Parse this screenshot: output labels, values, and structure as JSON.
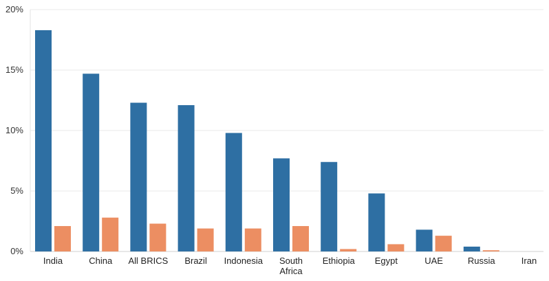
{
  "chart_data": {
    "type": "bar",
    "title": "",
    "xlabel": "",
    "ylabel": "",
    "ylim": [
      0,
      20
    ],
    "y_ticks": [
      {
        "value": 0,
        "label": "0%"
      },
      {
        "value": 5,
        "label": "5%"
      },
      {
        "value": 10,
        "label": "10%"
      },
      {
        "value": 15,
        "label": "15%"
      },
      {
        "value": 20,
        "label": "20%"
      }
    ],
    "categories": [
      "India",
      "China",
      "All BRICS",
      "Brazil",
      "Indonesia",
      "South Africa",
      "Ethiopia",
      "Egypt",
      "UAE",
      "Russia",
      "Iran"
    ],
    "category_lines": [
      [
        "India"
      ],
      [
        "China"
      ],
      [
        "All BRICS"
      ],
      [
        "Brazil"
      ],
      [
        "Indonesia"
      ],
      [
        "South",
        "Africa"
      ],
      [
        "Ethiopia"
      ],
      [
        "Egypt"
      ],
      [
        "UAE"
      ],
      [
        "Russia"
      ],
      [
        "Iran"
      ]
    ],
    "series": [
      {
        "color": "#2e6fa3",
        "values": [
          18.3,
          14.7,
          12.3,
          12.1,
          9.8,
          7.7,
          7.4,
          4.8,
          1.8,
          0.4,
          0.0
        ]
      },
      {
        "color": "#ec8e62",
        "values": [
          2.1,
          2.8,
          2.3,
          1.9,
          1.9,
          2.1,
          0.2,
          0.6,
          1.3,
          0.1,
          0.0
        ]
      }
    ],
    "grid": true,
    "legend": "none"
  }
}
